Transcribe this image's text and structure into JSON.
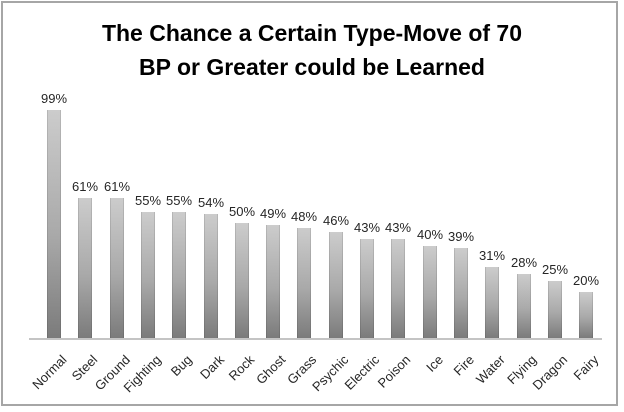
{
  "chart_data": {
    "type": "bar",
    "title": "The Chance a Certain Type-Move of 70 BP or Greater could be Learned",
    "title_lines": [
      "The Chance a Certain Type-Move of 70",
      "BP or Greater could be Learned"
    ],
    "categories": [
      "Normal",
      "Steel",
      "Ground",
      "Fighting",
      "Bug",
      "Dark",
      "Rock",
      "Ghost",
      "Grass",
      "Psychic",
      "Electric",
      "Poison",
      "Ice",
      "Fire",
      "Water",
      "Flying",
      "Dragon",
      "Fairy"
    ],
    "values": [
      99,
      61,
      61,
      55,
      55,
      54,
      50,
      49,
      48,
      46,
      43,
      43,
      40,
      39,
      31,
      28,
      25,
      20
    ],
    "data_labels": [
      "99%",
      "61%",
      "61%",
      "55%",
      "55%",
      "54%",
      "50%",
      "49%",
      "48%",
      "46%",
      "43%",
      "43%",
      "40%",
      "39%",
      "31%",
      "28%",
      "25%",
      "20%"
    ],
    "unit": "%",
    "xlabel": "",
    "ylabel": "",
    "ylim": [
      0,
      100
    ],
    "grid": false,
    "legend": "none",
    "colors": {
      "bar_gradient_top": "#cccccc",
      "bar_gradient_bottom": "#7b7b7b",
      "axis_line": "#c4c4c4",
      "frame_border": "#a6a6a6",
      "label_text": "#262626",
      "title_text": "#000000",
      "background": "#ffffff"
    }
  }
}
